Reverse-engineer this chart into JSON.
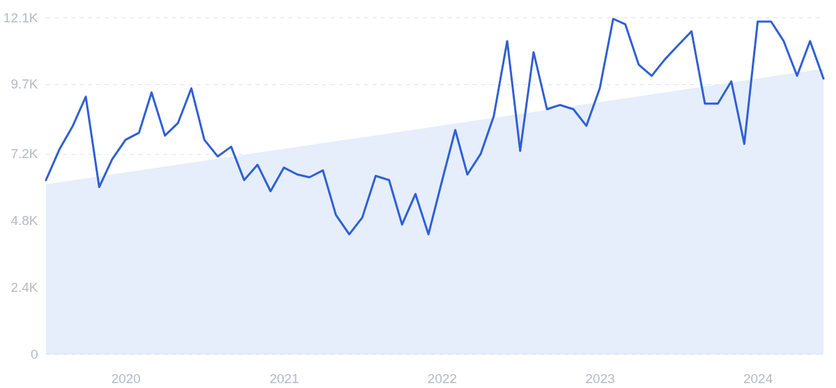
{
  "chart_data": {
    "type": "line",
    "x": [
      "2019-07",
      "2019-08",
      "2019-09",
      "2019-10",
      "2019-11",
      "2019-12",
      "2020-01",
      "2020-02",
      "2020-03",
      "2020-04",
      "2020-05",
      "2020-06",
      "2020-07",
      "2020-08",
      "2020-09",
      "2020-10",
      "2020-11",
      "2020-12",
      "2021-01",
      "2021-02",
      "2021-03",
      "2021-04",
      "2021-05",
      "2021-06",
      "2021-07",
      "2021-08",
      "2021-09",
      "2021-10",
      "2021-11",
      "2021-12",
      "2022-01",
      "2022-02",
      "2022-03",
      "2022-04",
      "2022-05",
      "2022-06",
      "2022-07",
      "2022-08",
      "2022-09",
      "2022-10",
      "2022-11",
      "2022-12",
      "2023-01",
      "2023-02",
      "2023-03",
      "2023-04",
      "2023-05",
      "2023-06",
      "2023-07",
      "2023-08",
      "2023-09",
      "2023-10",
      "2023-11",
      "2023-12",
      "2024-01",
      "2024-02",
      "2024-03",
      "2024-04",
      "2024-05",
      "2024-06"
    ],
    "series": [
      {
        "type": "area",
        "color": "#e2ecfa",
        "x": [
          "2019-07",
          "2024-06"
        ],
        "values": [
          6100,
          10250
        ]
      },
      {
        "color": "#2f5fd6",
        "values": [
          6250,
          7350,
          8200,
          9250,
          6000,
          7000,
          7700,
          7950,
          9400,
          7850,
          8300,
          9550,
          7700,
          7100,
          7450,
          6250,
          6800,
          5850,
          6700,
          6450,
          6350,
          6600,
          5000,
          4300,
          4900,
          6400,
          6250,
          4650,
          5750,
          4300,
          6200,
          8050,
          6450,
          7200,
          8550,
          11250,
          7300,
          10850,
          8800,
          8950,
          8800,
          8200,
          9550,
          12050,
          11850,
          10400,
          10000,
          10600,
          11100,
          11600,
          9000,
          9000,
          9800,
          7550,
          11950,
          11950,
          11250,
          10000,
          11250,
          9900
        ]
      }
    ],
    "ylim": [
      0,
      12100
    ],
    "yticks": [
      0,
      {
        "value": 2400,
        "label": "2.4K"
      },
      {
        "value": 4800,
        "label": "4.8K"
      },
      {
        "value": 7200,
        "label": "7.2K"
      },
      {
        "value": 9700,
        "label": "9.7K"
      },
      {
        "value": 12100,
        "label": "12.1K"
      }
    ],
    "xlim": [
      "2019-07",
      "2024-06"
    ],
    "xticks": [
      {
        "value": "2020",
        "label": "2020"
      },
      {
        "value": "2021",
        "label": "2021"
      },
      {
        "value": "2022",
        "label": "2022"
      },
      {
        "value": "2023",
        "label": "2023"
      },
      {
        "value": "2024",
        "label": "2024"
      }
    ],
    "grid": "y",
    "line_style": "solid",
    "marker": "none"
  }
}
